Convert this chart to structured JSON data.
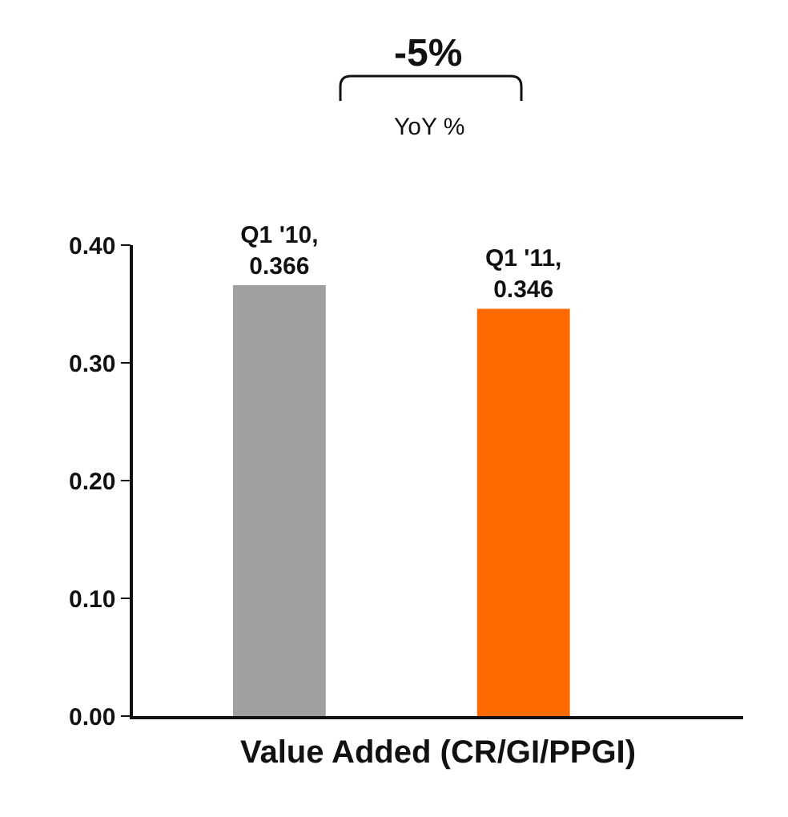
{
  "chart_data": {
    "type": "bar",
    "xlabel": "Value Added (CR/GI/PPGI)",
    "annotations": [
      "-5%",
      "YoY %"
    ],
    "categories": [
      null,
      null
    ],
    "values": [
      0.366,
      0.346
    ],
    "colors": [
      "#a0a0a0",
      "#ff6a00"
    ],
    "value_labels": [
      "Q1 '10,\n0.366",
      "Q1 '11,\n0.346"
    ],
    "ylim": [
      0,
      0.4
    ],
    "yticks": [
      {
        "value": 0,
        "label": "0.00"
      },
      {
        "value": 0.1,
        "label": "0.10"
      },
      {
        "value": 0.2,
        "label": "0.20"
      },
      {
        "value": 0.3,
        "label": "0.30"
      },
      {
        "value": 0.4,
        "label": "0.40"
      }
    ],
    "tick_labels": "y"
  }
}
